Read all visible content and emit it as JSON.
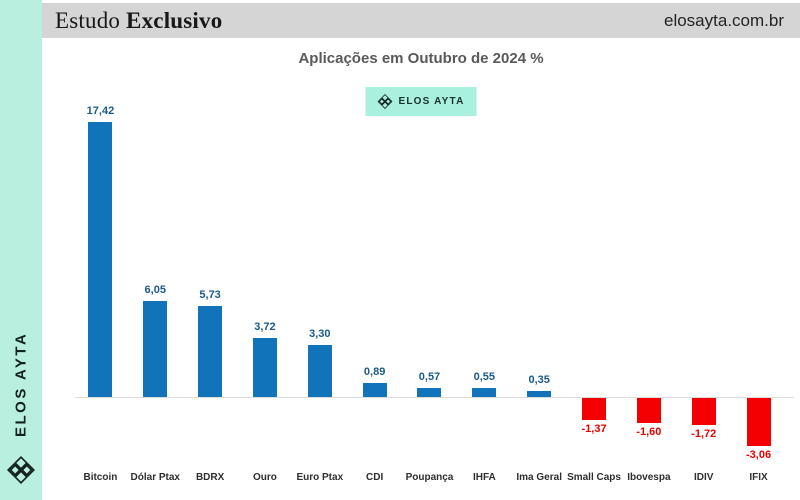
{
  "sidebar": {
    "brand": "ELOS AYTA"
  },
  "header": {
    "study_title_regular": "Estudo ",
    "study_title_bold": "Exclusivo",
    "website": "elosayta.com.br"
  },
  "badge": {
    "label": "ELOS AYTA"
  },
  "chart_data": {
    "type": "bar",
    "title": "Aplicações em Outubro de 2024 %",
    "categories": [
      "Bitcoin",
      "Dólar Ptax",
      "BDRX",
      "Ouro",
      "Euro Ptax",
      "CDI",
      "Poupança",
      "IHFA",
      "Ima Geral",
      "Small Caps",
      "Ibovespa",
      "IDIV",
      "IFIX"
    ],
    "values": [
      17.42,
      6.05,
      5.73,
      3.72,
      3.3,
      0.89,
      0.57,
      0.55,
      0.35,
      -1.37,
      -1.6,
      -1.72,
      -3.06
    ],
    "value_labels": [
      "17,42",
      "6,05",
      "5,73",
      "3,72",
      "3,30",
      "0,89",
      "0,57",
      "0,55",
      "0,35",
      "-1,37",
      "-1,60",
      "-1,72",
      "-3,06"
    ],
    "xlabel": "",
    "ylabel": "",
    "ylim": [
      -3.5,
      18
    ],
    "grid": false,
    "legend_position": "none",
    "colors": {
      "positive_bar": "#1173b9",
      "negative_bar": "#f40000",
      "positive_label": "#1a5a8a",
      "negative_label": "#e60000",
      "sidebar_mint": "#b9efdf",
      "badge_mint": "#aaf0de",
      "header_gray": "#d5d5d5"
    }
  }
}
